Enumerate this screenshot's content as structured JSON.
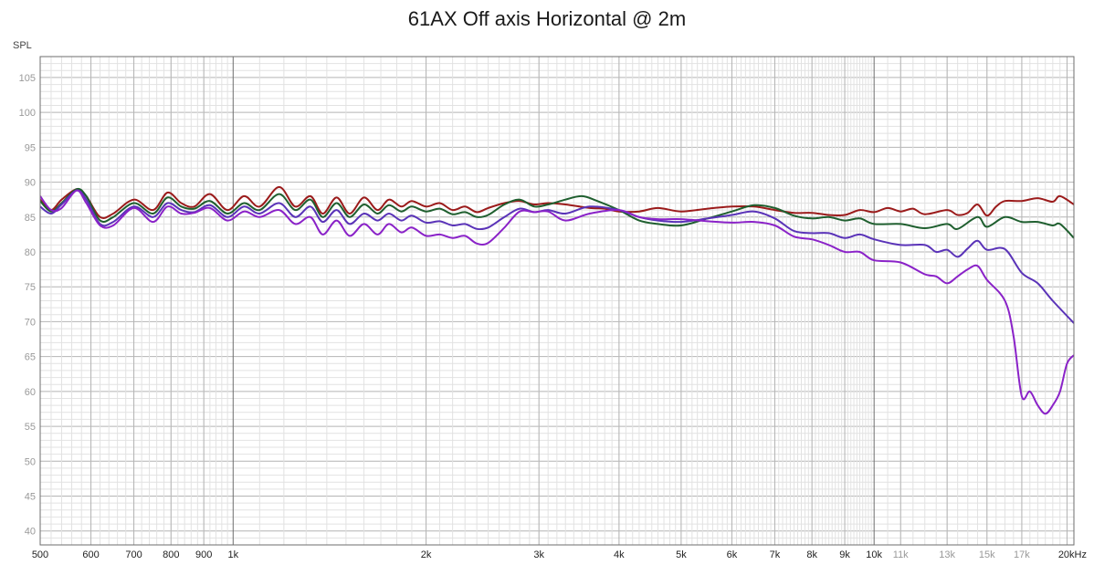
{
  "chart_data": {
    "type": "line",
    "title": "61AX Off axis Horizontal @ 2m",
    "ylabel": "SPL",
    "xlabel": "",
    "x_scale": "log",
    "xlim": [
      500,
      20500
    ],
    "ylim": [
      38,
      108
    ],
    "grid": true,
    "y_ticks": [
      40,
      45,
      50,
      55,
      60,
      65,
      70,
      75,
      80,
      85,
      90,
      95,
      100,
      105
    ],
    "x_ticks": [
      {
        "value": 500,
        "label": "500"
      },
      {
        "value": 600,
        "label": "600"
      },
      {
        "value": 700,
        "label": "700"
      },
      {
        "value": 800,
        "label": "800"
      },
      {
        "value": 900,
        "label": "900"
      },
      {
        "value": 1000,
        "label": "1k"
      },
      {
        "value": 2000,
        "label": "2k"
      },
      {
        "value": 3000,
        "label": "3k"
      },
      {
        "value": 4000,
        "label": "4k"
      },
      {
        "value": 5000,
        "label": "5k"
      },
      {
        "value": 6000,
        "label": "6k"
      },
      {
        "value": 7000,
        "label": "7k"
      },
      {
        "value": 8000,
        "label": "8k"
      },
      {
        "value": 9000,
        "label": "9k"
      },
      {
        "value": 10000,
        "label": "10k"
      },
      {
        "value": 11000,
        "label": "11k"
      },
      {
        "value": 13000,
        "label": "13k"
      },
      {
        "value": 15000,
        "label": "15k"
      },
      {
        "value": 17000,
        "label": "17k"
      },
      {
        "value": 20000,
        "label": "20kHz"
      }
    ],
    "colors": {
      "grid_major": "#b4b4b4",
      "grid_minor": "#e2e2e2",
      "decade": "#6e6e6e",
      "axis_text": "#444444",
      "dim_text": "#999999"
    },
    "series": [
      {
        "color": "#9b1b1b",
        "points": [
          [
            500,
            87.5
          ],
          [
            520,
            86.0
          ],
          [
            540,
            87.5
          ],
          [
            570,
            89.0
          ],
          [
            590,
            88.0
          ],
          [
            620,
            85.0
          ],
          [
            650,
            85.5
          ],
          [
            700,
            87.5
          ],
          [
            750,
            86.0
          ],
          [
            790,
            88.5
          ],
          [
            830,
            87.0
          ],
          [
            870,
            86.5
          ],
          [
            920,
            88.3
          ],
          [
            980,
            86.0
          ],
          [
            1040,
            88.0
          ],
          [
            1100,
            86.5
          ],
          [
            1180,
            89.3
          ],
          [
            1250,
            86.5
          ],
          [
            1320,
            88.0
          ],
          [
            1380,
            85.5
          ],
          [
            1450,
            87.8
          ],
          [
            1520,
            85.5
          ],
          [
            1600,
            87.8
          ],
          [
            1680,
            86.0
          ],
          [
            1750,
            87.5
          ],
          [
            1830,
            86.5
          ],
          [
            1900,
            87.3
          ],
          [
            2000,
            86.5
          ],
          [
            2100,
            87.0
          ],
          [
            2200,
            86.0
          ],
          [
            2300,
            86.5
          ],
          [
            2400,
            85.7
          ],
          [
            2500,
            86.3
          ],
          [
            2650,
            87.0
          ],
          [
            2800,
            87.3
          ],
          [
            2950,
            86.8
          ],
          [
            3100,
            87.0
          ],
          [
            3300,
            86.8
          ],
          [
            3600,
            86.3
          ],
          [
            3800,
            86.2
          ],
          [
            4000,
            85.8
          ],
          [
            4300,
            85.8
          ],
          [
            4600,
            86.3
          ],
          [
            5000,
            85.8
          ],
          [
            5500,
            86.2
          ],
          [
            6000,
            86.5
          ],
          [
            6500,
            86.5
          ],
          [
            7000,
            86.0
          ],
          [
            7500,
            85.6
          ],
          [
            8000,
            85.6
          ],
          [
            8500,
            85.3
          ],
          [
            9000,
            85.3
          ],
          [
            9500,
            86.0
          ],
          [
            10000,
            85.7
          ],
          [
            10500,
            86.3
          ],
          [
            11000,
            85.8
          ],
          [
            11500,
            86.2
          ],
          [
            12000,
            85.4
          ],
          [
            13000,
            86.0
          ],
          [
            13500,
            85.3
          ],
          [
            14000,
            85.6
          ],
          [
            14500,
            86.8
          ],
          [
            15000,
            85.2
          ],
          [
            15500,
            86.5
          ],
          [
            16000,
            87.3
          ],
          [
            17000,
            87.3
          ],
          [
            18000,
            87.7
          ],
          [
            19000,
            87.2
          ],
          [
            19500,
            88.0
          ],
          [
            20500,
            86.8
          ]
        ]
      },
      {
        "color": "#1f5f2f",
        "points": [
          [
            500,
            87.3
          ],
          [
            520,
            85.8
          ],
          [
            540,
            87.0
          ],
          [
            570,
            89.0
          ],
          [
            590,
            88.0
          ],
          [
            620,
            84.5
          ],
          [
            650,
            85.0
          ],
          [
            700,
            87.0
          ],
          [
            750,
            85.5
          ],
          [
            790,
            87.8
          ],
          [
            830,
            86.5
          ],
          [
            870,
            86.2
          ],
          [
            920,
            87.3
          ],
          [
            980,
            85.5
          ],
          [
            1040,
            87.0
          ],
          [
            1100,
            86.0
          ],
          [
            1180,
            88.3
          ],
          [
            1250,
            86.0
          ],
          [
            1320,
            87.5
          ],
          [
            1380,
            85.0
          ],
          [
            1450,
            87.0
          ],
          [
            1520,
            85.0
          ],
          [
            1600,
            86.8
          ],
          [
            1680,
            85.5
          ],
          [
            1750,
            86.7
          ],
          [
            1830,
            85.8
          ],
          [
            1900,
            86.5
          ],
          [
            2000,
            85.8
          ],
          [
            2100,
            86.2
          ],
          [
            2200,
            85.4
          ],
          [
            2300,
            85.7
          ],
          [
            2400,
            85.0
          ],
          [
            2500,
            85.3
          ],
          [
            2650,
            86.8
          ],
          [
            2800,
            87.5
          ],
          [
            2950,
            86.5
          ],
          [
            3100,
            86.8
          ],
          [
            3300,
            87.5
          ],
          [
            3500,
            88.0
          ],
          [
            3700,
            87.3
          ],
          [
            4000,
            86.0
          ],
          [
            4300,
            84.5
          ],
          [
            4600,
            84.0
          ],
          [
            5000,
            83.8
          ],
          [
            5500,
            84.8
          ],
          [
            6000,
            85.8
          ],
          [
            6500,
            86.7
          ],
          [
            7000,
            86.3
          ],
          [
            7500,
            85.2
          ],
          [
            8000,
            84.8
          ],
          [
            8500,
            85.0
          ],
          [
            9000,
            84.5
          ],
          [
            9500,
            84.8
          ],
          [
            10000,
            84.0
          ],
          [
            11000,
            84.0
          ],
          [
            12000,
            83.4
          ],
          [
            13000,
            84.0
          ],
          [
            13500,
            83.3
          ],
          [
            14500,
            85.0
          ],
          [
            15000,
            83.6
          ],
          [
            16000,
            85.0
          ],
          [
            17000,
            84.3
          ],
          [
            18000,
            84.3
          ],
          [
            19000,
            83.8
          ],
          [
            19500,
            84.0
          ],
          [
            20500,
            82.0
          ]
        ]
      },
      {
        "color": "#5a33b8",
        "points": [
          [
            500,
            86.5
          ],
          [
            520,
            85.5
          ],
          [
            540,
            86.8
          ],
          [
            570,
            88.8
          ],
          [
            590,
            87.5
          ],
          [
            620,
            84.0
          ],
          [
            650,
            84.3
          ],
          [
            700,
            86.5
          ],
          [
            750,
            85.0
          ],
          [
            790,
            87.0
          ],
          [
            830,
            86.0
          ],
          [
            870,
            85.7
          ],
          [
            920,
            86.7
          ],
          [
            980,
            85.0
          ],
          [
            1040,
            86.5
          ],
          [
            1100,
            85.5
          ],
          [
            1180,
            87.0
          ],
          [
            1250,
            85.0
          ],
          [
            1320,
            86.5
          ],
          [
            1380,
            84.3
          ],
          [
            1450,
            86.0
          ],
          [
            1520,
            84.0
          ],
          [
            1600,
            85.5
          ],
          [
            1680,
            84.5
          ],
          [
            1750,
            85.5
          ],
          [
            1830,
            84.5
          ],
          [
            1900,
            85.2
          ],
          [
            2000,
            84.2
          ],
          [
            2100,
            84.4
          ],
          [
            2200,
            83.8
          ],
          [
            2300,
            84.0
          ],
          [
            2400,
            83.3
          ],
          [
            2500,
            83.5
          ],
          [
            2650,
            85.0
          ],
          [
            2800,
            86.2
          ],
          [
            2950,
            85.7
          ],
          [
            3100,
            86.0
          ],
          [
            3300,
            85.5
          ],
          [
            3600,
            86.5
          ],
          [
            4000,
            86.0
          ],
          [
            4300,
            85.0
          ],
          [
            4600,
            84.5
          ],
          [
            5000,
            84.3
          ],
          [
            5500,
            84.8
          ],
          [
            6000,
            85.3
          ],
          [
            6500,
            85.8
          ],
          [
            7000,
            84.8
          ],
          [
            7500,
            83.0
          ],
          [
            8000,
            82.7
          ],
          [
            8500,
            82.7
          ],
          [
            9000,
            82.0
          ],
          [
            9500,
            82.5
          ],
          [
            10000,
            81.8
          ],
          [
            11000,
            81.0
          ],
          [
            12000,
            81.0
          ],
          [
            12500,
            80.0
          ],
          [
            13000,
            80.3
          ],
          [
            13500,
            79.3
          ],
          [
            14000,
            80.5
          ],
          [
            14500,
            81.6
          ],
          [
            15000,
            80.3
          ],
          [
            16000,
            80.4
          ],
          [
            17000,
            77.0
          ],
          [
            18000,
            75.5
          ],
          [
            19000,
            73.0
          ],
          [
            20500,
            69.8
          ]
        ]
      },
      {
        "color": "#8a22c8",
        "points": [
          [
            500,
            88.0
          ],
          [
            520,
            86.0
          ],
          [
            540,
            86.3
          ],
          [
            570,
            88.8
          ],
          [
            590,
            87.0
          ],
          [
            620,
            83.8
          ],
          [
            650,
            83.8
          ],
          [
            700,
            86.3
          ],
          [
            750,
            84.3
          ],
          [
            790,
            86.5
          ],
          [
            830,
            85.5
          ],
          [
            870,
            85.6
          ],
          [
            920,
            86.3
          ],
          [
            980,
            84.5
          ],
          [
            1040,
            85.8
          ],
          [
            1100,
            85.0
          ],
          [
            1180,
            86.0
          ],
          [
            1250,
            84.0
          ],
          [
            1320,
            85.0
          ],
          [
            1380,
            82.5
          ],
          [
            1450,
            84.5
          ],
          [
            1520,
            82.3
          ],
          [
            1600,
            84.0
          ],
          [
            1680,
            82.5
          ],
          [
            1750,
            84.0
          ],
          [
            1830,
            82.8
          ],
          [
            1900,
            83.5
          ],
          [
            2000,
            82.3
          ],
          [
            2100,
            82.5
          ],
          [
            2200,
            82.0
          ],
          [
            2300,
            82.3
          ],
          [
            2400,
            81.2
          ],
          [
            2500,
            81.3
          ],
          [
            2650,
            83.5
          ],
          [
            2800,
            85.8
          ],
          [
            2950,
            85.7
          ],
          [
            3100,
            85.8
          ],
          [
            3300,
            84.5
          ],
          [
            3600,
            85.5
          ],
          [
            4000,
            86.0
          ],
          [
            4300,
            85.0
          ],
          [
            4600,
            84.7
          ],
          [
            5000,
            84.7
          ],
          [
            5500,
            84.4
          ],
          [
            6000,
            84.2
          ],
          [
            6500,
            84.3
          ],
          [
            7000,
            83.8
          ],
          [
            7500,
            82.2
          ],
          [
            8000,
            81.8
          ],
          [
            8500,
            81.0
          ],
          [
            9000,
            80.0
          ],
          [
            9500,
            80.0
          ],
          [
            10000,
            78.8
          ],
          [
            11000,
            78.5
          ],
          [
            12000,
            76.8
          ],
          [
            12500,
            76.5
          ],
          [
            13000,
            75.5
          ],
          [
            13500,
            76.5
          ],
          [
            14000,
            77.5
          ],
          [
            14500,
            78.0
          ],
          [
            15000,
            76.0
          ],
          [
            16000,
            73.0
          ],
          [
            16500,
            68.0
          ],
          [
            17000,
            59.3
          ],
          [
            17500,
            60.0
          ],
          [
            18000,
            58.0
          ],
          [
            18500,
            56.8
          ],
          [
            19000,
            58.0
          ],
          [
            19500,
            60.0
          ],
          [
            20000,
            64.0
          ],
          [
            20500,
            65.2
          ]
        ]
      }
    ]
  }
}
